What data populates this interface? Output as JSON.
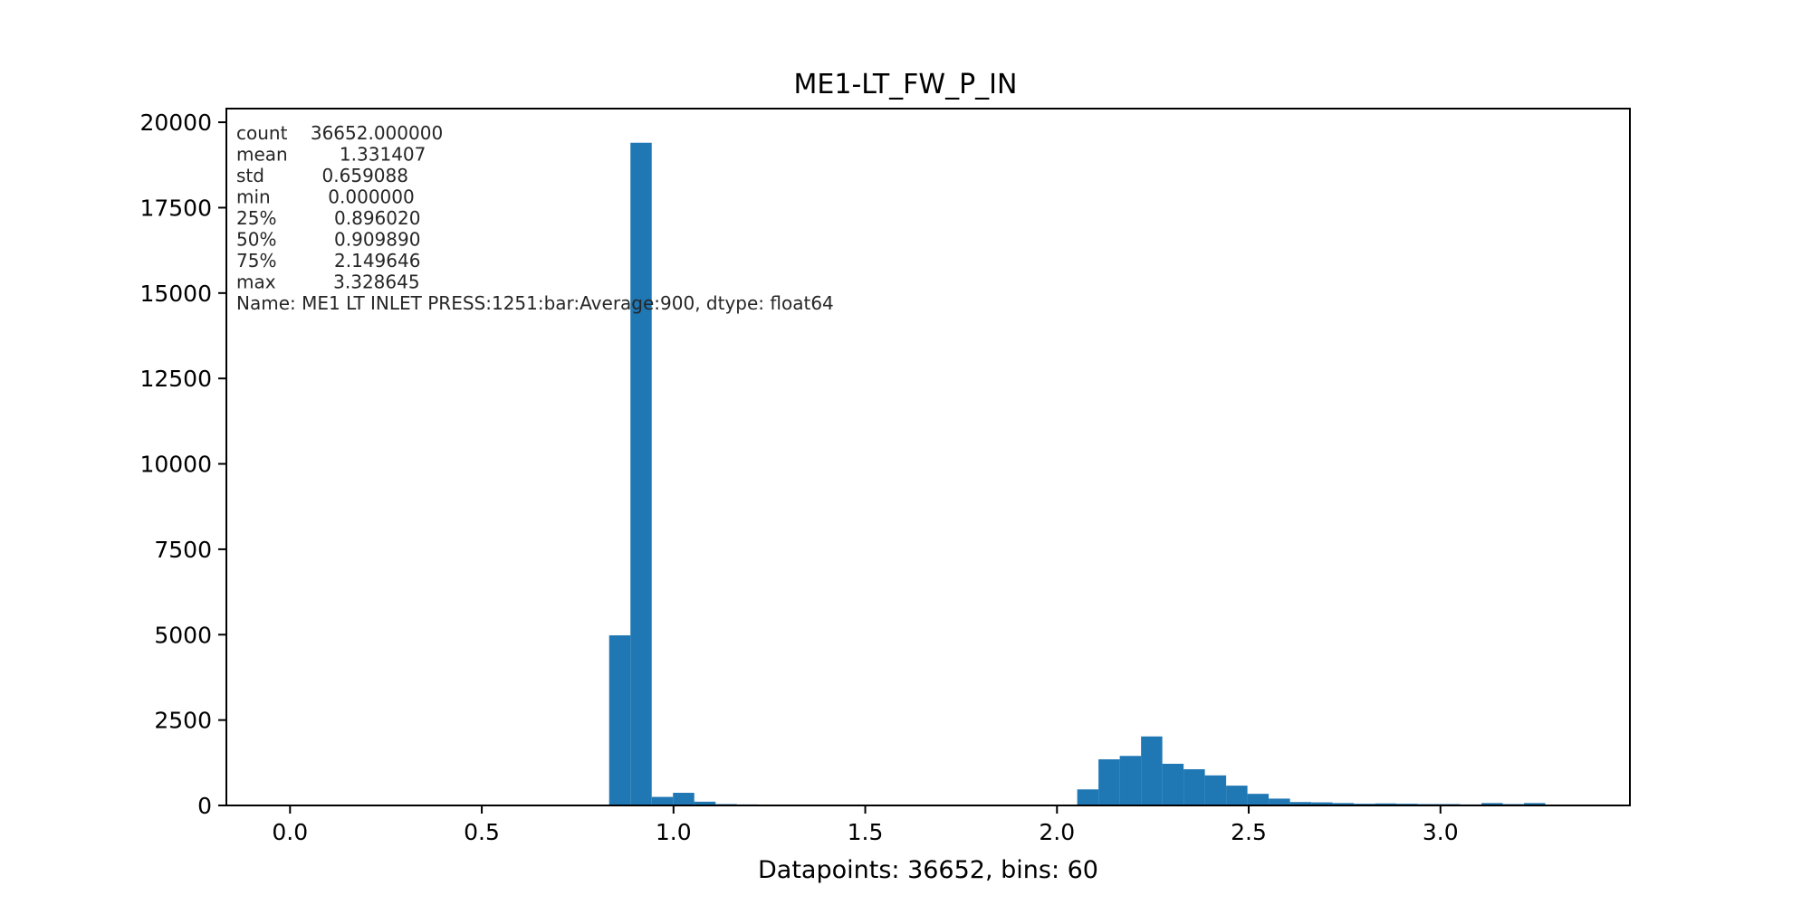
{
  "colors": {
    "bar": "#1f77b4",
    "axis": "#000000",
    "annotation_text": "#262626",
    "background": "#ffffff"
  },
  "chart_data": {
    "type": "bar",
    "title": "ME1-LT_FW_P_IN",
    "xlabel": "Datapoints: 36652, bins: 60",
    "ylabel": "",
    "xlim": [
      -0.166,
      3.494
    ],
    "ylim": [
      0,
      20400
    ],
    "grid": false,
    "x_ticks": [
      0.0,
      0.5,
      1.0,
      1.5,
      2.0,
      2.5,
      3.0
    ],
    "x_tick_labels": [
      "0.0",
      "0.5",
      "1.0",
      "1.5",
      "2.0",
      "2.5",
      "3.0"
    ],
    "y_ticks": [
      0,
      2500,
      5000,
      7500,
      10000,
      12500,
      15000,
      17500,
      20000
    ],
    "y_tick_labels": [
      "0",
      "2500",
      "5000",
      "7500",
      "10000",
      "12500",
      "15000",
      "17500",
      "20000"
    ],
    "bin_start": 0.0,
    "bin_width": 0.05548,
    "bins": 60,
    "values": [
      3,
      0,
      0,
      0,
      0,
      0,
      0,
      0,
      0,
      0,
      0,
      0,
      0,
      0,
      0,
      4980,
      19400,
      250,
      370,
      110,
      40,
      30,
      25,
      20,
      15,
      10,
      20,
      25,
      20,
      10,
      5,
      20,
      20,
      25,
      20,
      20,
      25,
      470,
      1350,
      1450,
      2020,
      1220,
      1060,
      880,
      580,
      340,
      200,
      100,
      90,
      70,
      50,
      60,
      50,
      40,
      40,
      30,
      70,
      40,
      70,
      10
    ],
    "annotation_lines": [
      "count    36652.000000",
      "mean         1.331407",
      "std          0.659088",
      "min          0.000000",
      "25%          0.896020",
      "50%          0.909890",
      "75%          2.149646",
      "max          3.328645",
      "Name: ME1 LT INLET PRESS:1251:bar:Average:900, dtype: float64"
    ]
  }
}
